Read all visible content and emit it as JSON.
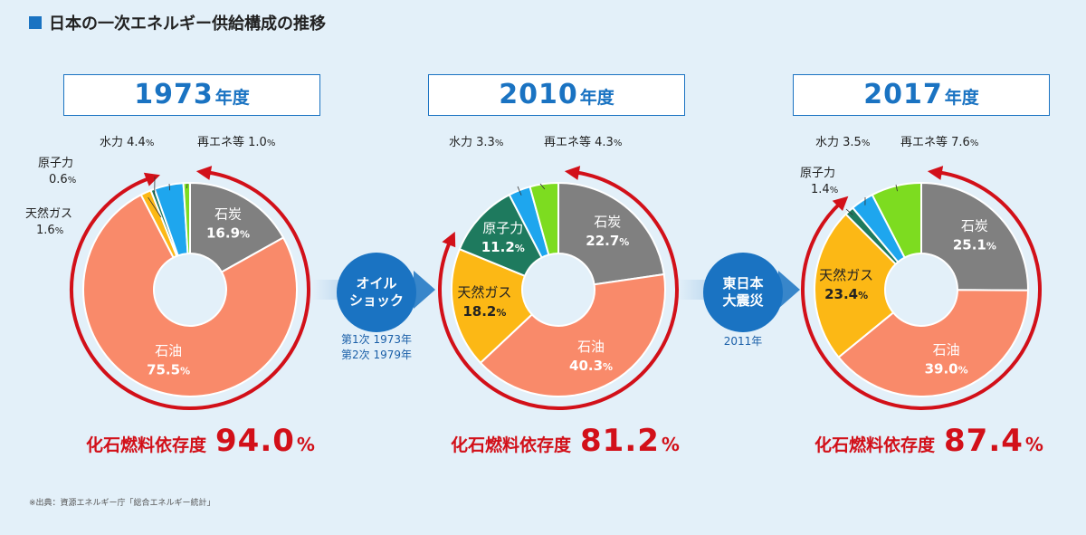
{
  "title": "日本の一次エネルギー供給構成の推移",
  "source": "※出典：資源エネルギー庁「総合エネルギー統計」",
  "fossil_label": "化石燃料依存度",
  "colors": {
    "coal": "#808080",
    "oil": "#f98a6a",
    "gas": "#fcb815",
    "nuclear": "#1e7a5e",
    "hydro": "#1ea6ee",
    "renew": "#7ddc20",
    "arrow": "#d21019",
    "accent": "#1a73c2"
  },
  "events": [
    {
      "label": "オイル\nショック",
      "note": "第1次 1973年\n第2次 1979年"
    },
    {
      "label": "東日本\n大震災",
      "note": "2011年"
    }
  ],
  "chart_data": [
    {
      "type": "pie",
      "year": "1973",
      "year_unit": "年度",
      "fossil_dependency": "94.0",
      "fossil_unit": "%",
      "slices": [
        {
          "name": "石炭",
          "value": 16.9,
          "label": "16.9",
          "key": "coal"
        },
        {
          "name": "石油",
          "value": 75.5,
          "label": "75.5",
          "key": "oil"
        },
        {
          "name": "天然ガス",
          "value": 1.6,
          "label": "1.6",
          "key": "gas"
        },
        {
          "name": "原子力",
          "value": 0.6,
          "label": "0.6",
          "key": "nuclear"
        },
        {
          "name": "水力",
          "value": 4.4,
          "label": "4.4",
          "key": "hydro"
        },
        {
          "name": "再エネ等",
          "value": 1.0,
          "label": "1.0",
          "key": "renew"
        }
      ]
    },
    {
      "type": "pie",
      "year": "2010",
      "year_unit": "年度",
      "fossil_dependency": "81.2",
      "fossil_unit": "%",
      "slices": [
        {
          "name": "石炭",
          "value": 22.7,
          "label": "22.7",
          "key": "coal"
        },
        {
          "name": "石油",
          "value": 40.3,
          "label": "40.3",
          "key": "oil"
        },
        {
          "name": "天然ガス",
          "value": 18.2,
          "label": "18.2",
          "key": "gas"
        },
        {
          "name": "原子力",
          "value": 11.2,
          "label": "11.2",
          "key": "nuclear"
        },
        {
          "name": "水力",
          "value": 3.3,
          "label": "3.3",
          "key": "hydro"
        },
        {
          "name": "再エネ等",
          "value": 4.3,
          "label": "4.3",
          "key": "renew"
        }
      ]
    },
    {
      "type": "pie",
      "year": "2017",
      "year_unit": "年度",
      "fossil_dependency": "87.4",
      "fossil_unit": "%",
      "slices": [
        {
          "name": "石炭",
          "value": 25.1,
          "label": "25.1",
          "key": "coal"
        },
        {
          "name": "石油",
          "value": 39.0,
          "label": "39.0",
          "key": "oil"
        },
        {
          "name": "天然ガス",
          "value": 23.4,
          "label": "23.4",
          "key": "gas"
        },
        {
          "name": "原子力",
          "value": 1.4,
          "label": "1.4",
          "key": "nuclear"
        },
        {
          "name": "水力",
          "value": 3.5,
          "label": "3.5",
          "key": "hydro"
        },
        {
          "name": "再エネ等",
          "value": 7.6,
          "label": "7.6",
          "key": "renew"
        }
      ]
    }
  ]
}
